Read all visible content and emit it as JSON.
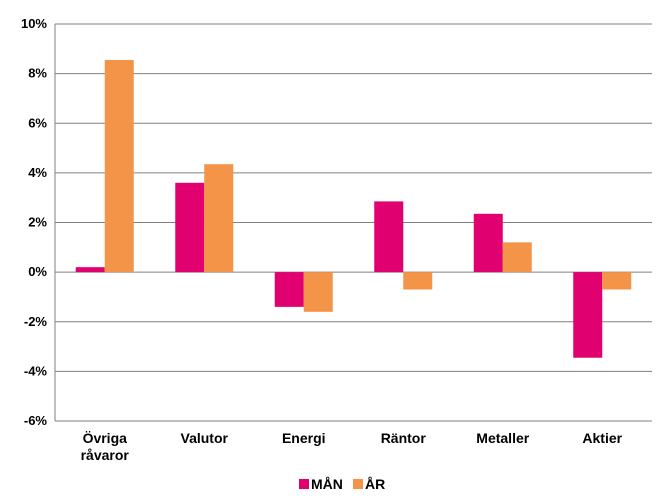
{
  "chart_data": {
    "type": "bar",
    "title": "",
    "xlabel": "",
    "ylabel": "",
    "categories": [
      [
        "Övriga",
        "råvaror"
      ],
      [
        "Valutor"
      ],
      [
        "Energi"
      ],
      [
        "Räntor"
      ],
      [
        "Metaller"
      ],
      [
        "Aktier"
      ]
    ],
    "series": [
      {
        "name": "MÅN",
        "color": "#E0006F",
        "values": [
          0.2,
          3.6,
          -1.4,
          2.85,
          2.35,
          -3.45
        ]
      },
      {
        "name": "ÅR",
        "color": "#F39449",
        "values": [
          8.55,
          4.35,
          -1.6,
          -0.7,
          1.2,
          -0.7
        ]
      }
    ],
    "ylim": [
      -6,
      10
    ],
    "yticks": [
      -6,
      -4,
      -2,
      0,
      2,
      4,
      6,
      8,
      10
    ],
    "ytick_labels": [
      "-6%",
      "-4%",
      "-2%",
      "0%",
      "2%",
      "4%",
      "6%",
      "8%",
      "10%"
    ],
    "grid": true,
    "legend_position": "bottom-center"
  }
}
